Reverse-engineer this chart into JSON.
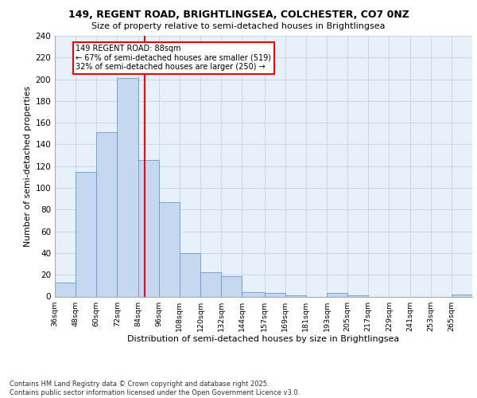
{
  "title1": "149, REGENT ROAD, BRIGHTLINGSEA, COLCHESTER, CO7 0NZ",
  "title2": "Size of property relative to semi-detached houses in Brightlingsea",
  "xlabel": "Distribution of semi-detached houses by size in Brightlingsea",
  "ylabel": "Number of semi-detached properties",
  "footnote": "Contains HM Land Registry data © Crown copyright and database right 2025.\nContains public sector information licensed under the Open Government Licence v3.0.",
  "bins": [
    36,
    48,
    60,
    72,
    84,
    96,
    108,
    120,
    132,
    144,
    157,
    169,
    181,
    193,
    205,
    217,
    229,
    241,
    253,
    265,
    277
  ],
  "counts": [
    13,
    115,
    151,
    201,
    126,
    87,
    40,
    22,
    19,
    4,
    3,
    1,
    0,
    3,
    1,
    0,
    0,
    0,
    0,
    2
  ],
  "bar_color": "#c5d8f0",
  "bar_edge_color": "#5a9fd4",
  "ref_line_x": 88,
  "ref_line_color": "red",
  "annotation_text": "149 REGENT ROAD: 88sqm\n← 67% of semi-detached houses are smaller (519)\n32% of semi-detached houses are larger (250) →",
  "ylim": [
    0,
    240
  ],
  "yticks": [
    0,
    20,
    40,
    60,
    80,
    100,
    120,
    140,
    160,
    180,
    200,
    220,
    240
  ],
  "grid_color": "#c8d8ec",
  "bg_color": "#e8f0fa"
}
